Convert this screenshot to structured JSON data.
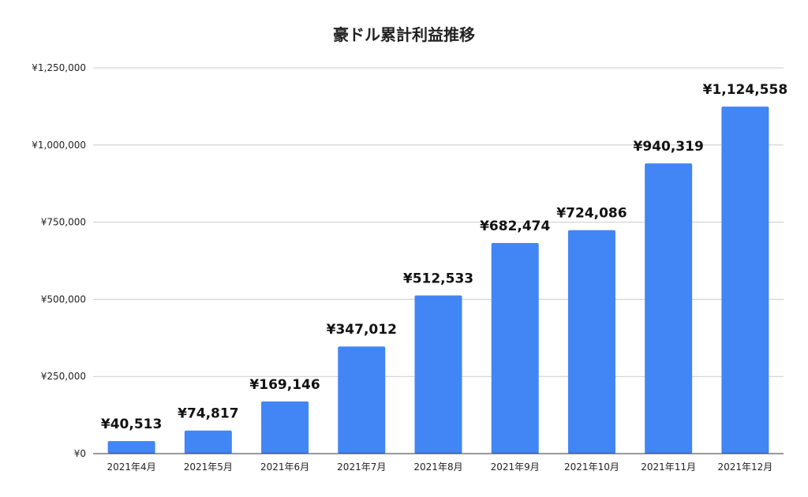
{
  "chart_data": {
    "type": "bar",
    "title": "豪ドル累計利益推移",
    "xlabel": "",
    "ylabel": "",
    "categories": [
      "2021年4月",
      "2021年5月",
      "2021年6月",
      "2021年7月",
      "2021年8月",
      "2021年9月",
      "2021年10月",
      "2021年11月",
      "2021年12月"
    ],
    "values": [
      40513,
      74817,
      169146,
      347012,
      512533,
      682474,
      724086,
      940319,
      1124558
    ],
    "data_labels": [
      "¥40,513",
      "¥74,817",
      "¥169,146",
      "¥347,012",
      "¥512,533",
      "¥682,474",
      "¥724,086",
      "¥940,319",
      "¥1,124,558"
    ],
    "y_ticks": [
      0,
      250000,
      500000,
      750000,
      1000000,
      1250000
    ],
    "y_tick_labels": [
      "¥0",
      "¥250,000",
      "¥500,000",
      "¥750,000",
      "¥1,000,000",
      "¥1,250,000"
    ],
    "ylim": [
      0,
      1250000
    ],
    "grid": true,
    "legend": "none",
    "colors": {
      "bar": "#4285f4",
      "grid": "#cccccc",
      "axis": "#333333"
    }
  }
}
